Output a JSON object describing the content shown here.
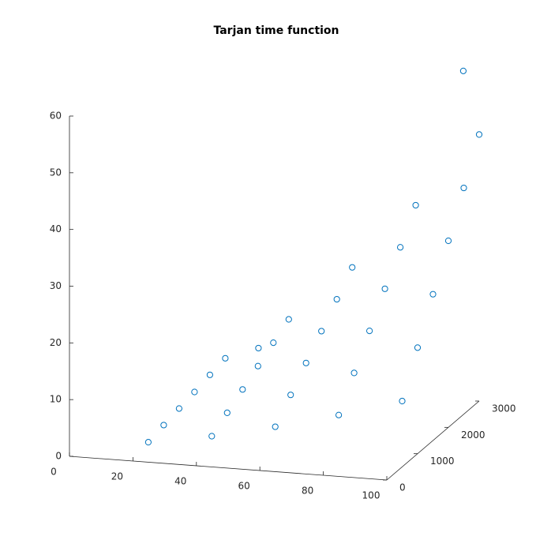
{
  "chart_data": {
    "type": "scatter3",
    "title": "Tarjan time function",
    "color": "#0072bd",
    "xlim": [
      0,
      100
    ],
    "xticks": [
      0,
      20,
      40,
      60,
      80,
      100
    ],
    "ylim": [
      0,
      3000
    ],
    "yticks": [
      0,
      1000,
      2000,
      3000
    ],
    "zlim": [
      0,
      60
    ],
    "zticks": [
      0,
      10,
      20,
      30,
      40,
      50,
      60
    ],
    "series": [
      {
        "x": [
          20,
          40,
          60,
          80,
          100,
          20,
          40,
          60,
          80,
          100,
          20,
          40,
          60,
          80,
          100,
          20,
          40,
          60,
          80,
          100,
          20,
          40,
          60,
          80,
          100,
          20,
          40,
          60,
          80,
          100,
          95,
          45
        ],
        "y": [
          500,
          500,
          500,
          500,
          500,
          1000,
          1000,
          1000,
          1000,
          1000,
          1500,
          1500,
          1500,
          1500,
          1500,
          2000,
          2000,
          2000,
          2000,
          2000,
          2500,
          2500,
          2500,
          2500,
          2500,
          3000,
          3000,
          3000,
          3000,
          3000,
          3000,
          1500
        ],
        "z": [
          1.0,
          2.9,
          5.4,
          8.3,
          11.6,
          1.7,
          4.7,
          8.7,
          13.4,
          18.7,
          2.3,
          6.5,
          12.0,
          18.5,
          25.8,
          2.9,
          8.3,
          15.3,
          23.6,
          32.9,
          3.6,
          10.1,
          18.6,
          28.6,
          39.9,
          4.2,
          11.9,
          21.9,
          33.7,
          47.0,
          58,
          14
        ]
      }
    ]
  }
}
